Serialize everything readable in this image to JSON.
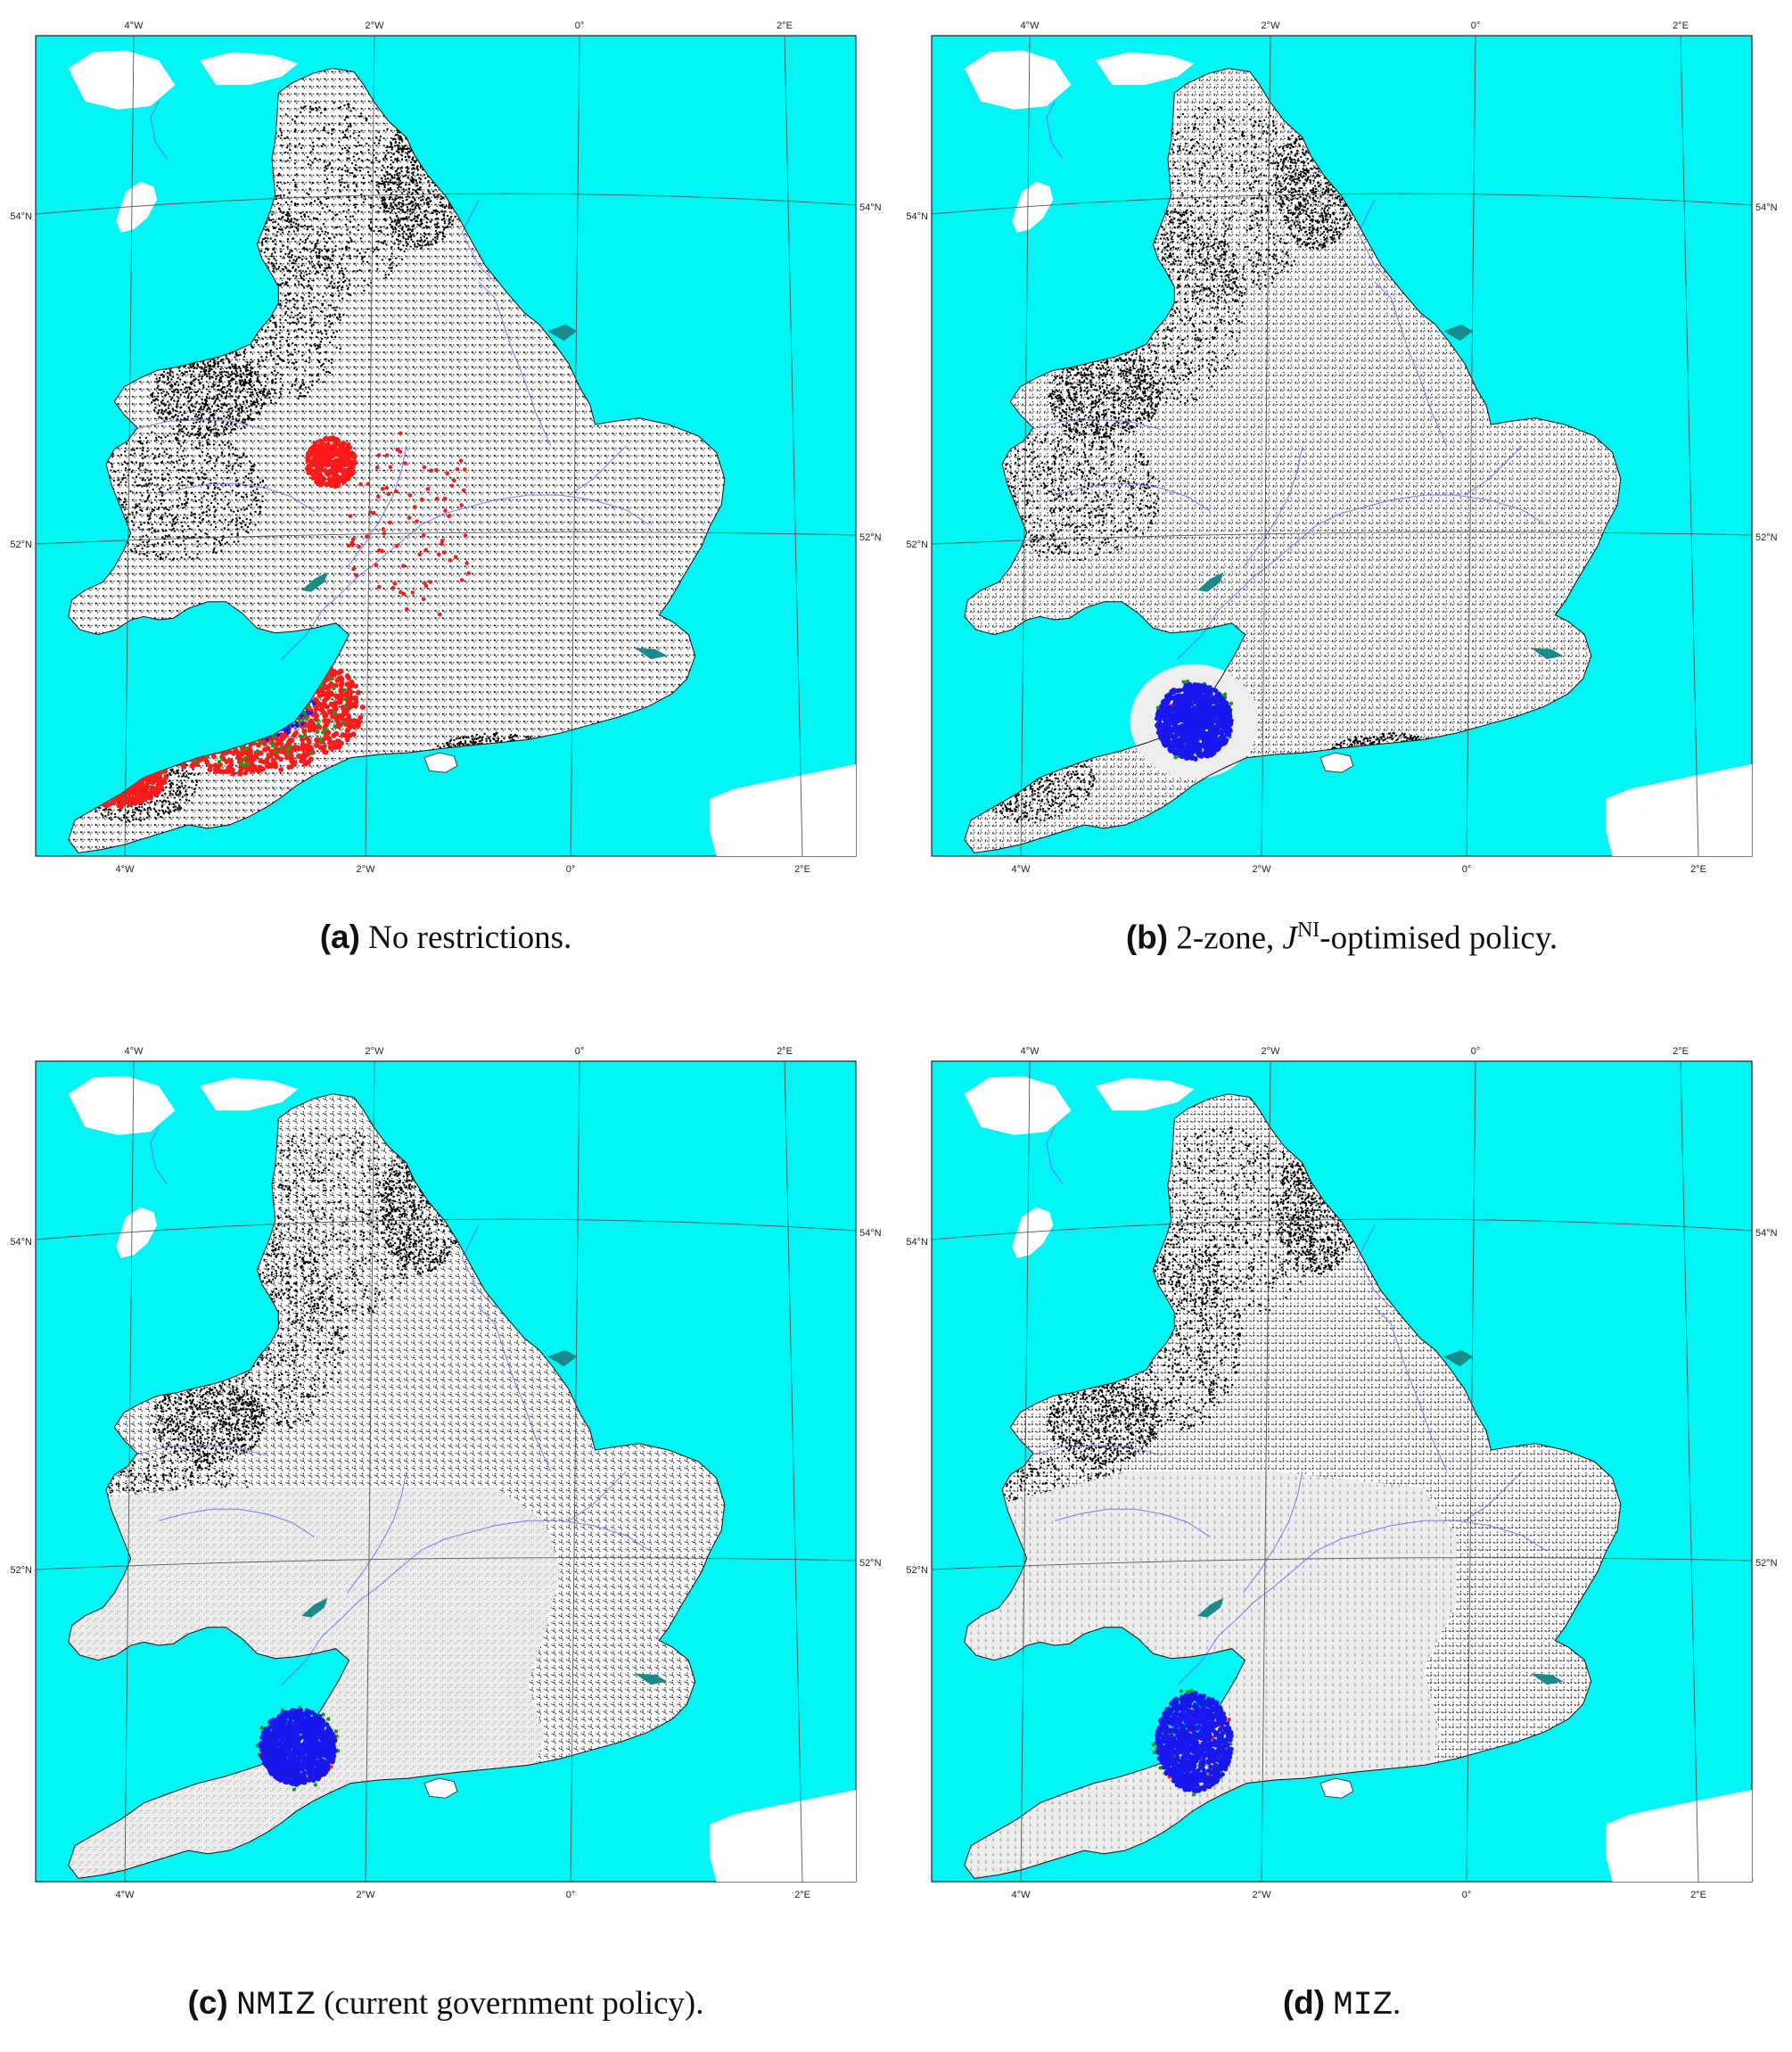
{
  "colors": {
    "sea": "#00f5f5",
    "land": "#ffffff",
    "farms": "#000000",
    "restricted_farms": "#9a9a9a",
    "infected_red": "#ff1a1a",
    "infected_blue": "#1818ee",
    "infected_green": "#1a9a1a",
    "rivers": "#6a6aff",
    "estuary": "#1a8a8a"
  },
  "map_labels": {
    "lon_ticks": [
      "4°W",
      "2°W",
      "0°",
      "2°E"
    ],
    "lat_ticks": [
      "54°N",
      "52°N"
    ]
  },
  "panels": [
    {
      "label": "(a)",
      "caption": "No restrictions.",
      "outbreak": "widespread",
      "zone": "none"
    },
    {
      "label": "(b)",
      "caption_pre": "2-zone, ",
      "caption_symbol": "J",
      "caption_sup": "NI",
      "caption_post": "-optimised policy.",
      "outbreak": "contained",
      "zone": "small-ring"
    },
    {
      "label": "(c)",
      "caption_code": "NMIZ",
      "caption": "(current government policy).",
      "outbreak": "contained",
      "zone": "large-south-west"
    },
    {
      "label": "(d)",
      "caption_code": "MIZ",
      "caption": ".",
      "outbreak": "contained",
      "zone": "large-south"
    }
  ]
}
